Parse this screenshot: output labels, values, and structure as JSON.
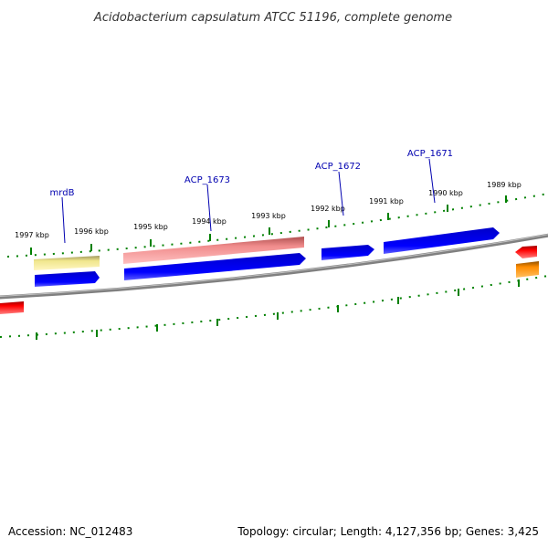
{
  "title": "Acidobacterium capsulatum ATCC 51196, complete genome",
  "footer": {
    "accession": "Accession: NC_012483",
    "summary": "Topology: circular; Length: 4,127,356 bp; Genes: 3,425"
  },
  "scale_labels": [
    "1997 kbp",
    "1996 kbp",
    "1995 kbp",
    "1994 kbp",
    "1993 kbp",
    "1992 kbp",
    "1991 kbp",
    "1990 kbp",
    "1989 kbp"
  ],
  "gene_labels": [
    "mrdB",
    "ACP_1673",
    "ACP_1672",
    "ACP_1671"
  ],
  "colors": {
    "background": "#ffffff",
    "backbone": "#808080",
    "ticks": "#008000",
    "gene_blue": "#0000e0",
    "gene_pink": "#f08c8c",
    "gene_yellow": "#f0e68c",
    "gene_red": "#ff0000",
    "gene_orange": "#ff8c00",
    "label_leader": "#0000b0"
  }
}
